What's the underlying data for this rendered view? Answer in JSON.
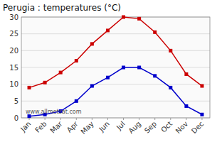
{
  "chart_data": {
    "type": "line",
    "title": "Perugia : temperatures (°C)",
    "categories": [
      "Jan",
      "Feb",
      "Mar",
      "Apr",
      "May",
      "Jun",
      "Jul",
      "Aug",
      "Sep",
      "Oct",
      "Nov",
      "Dec"
    ],
    "series": [
      {
        "color": "#cc0000",
        "marker": "square",
        "values": [
          9,
          10.5,
          13.5,
          17,
          22,
          26,
          30,
          29.5,
          25.5,
          20,
          13,
          9.5
        ]
      },
      {
        "color": "#0000cc",
        "marker": "square",
        "values": [
          0.5,
          1,
          2,
          5,
          9.5,
          12,
          15,
          15,
          12.5,
          9,
          3.5,
          1
        ]
      }
    ],
    "ylim": [
      0,
      30
    ],
    "yticks": [
      0,
      5,
      10,
      15,
      20,
      25,
      30
    ],
    "grid": true,
    "annotations": [
      "www.allmetsat.com"
    ]
  }
}
